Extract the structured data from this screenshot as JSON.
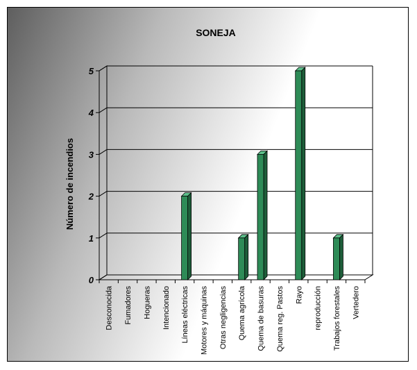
{
  "chart_data": {
    "type": "bar",
    "title": "SONEJA",
    "xlabel": "",
    "ylabel": "Número de incendios",
    "ylim": [
      0,
      5
    ],
    "yticks": [
      0,
      1,
      2,
      3,
      4,
      5
    ],
    "grid": true,
    "legend": "none",
    "bar_color": "#2e8b57",
    "categories": [
      "Desconocida",
      "Fumadores",
      "Hogueras",
      "Intencionado",
      "Líneas eléctricas",
      "Motores y máquinas",
      "Otras negligencias",
      "Quema agrícola",
      "Quema de basuras",
      "Quema reg. Pastos",
      "Rayo",
      "reproducción",
      "Trabajos forestales",
      "Vertedero"
    ],
    "values": [
      0,
      0,
      0,
      0,
      2,
      0,
      0,
      1,
      3,
      0,
      5,
      0,
      1,
      0
    ]
  }
}
